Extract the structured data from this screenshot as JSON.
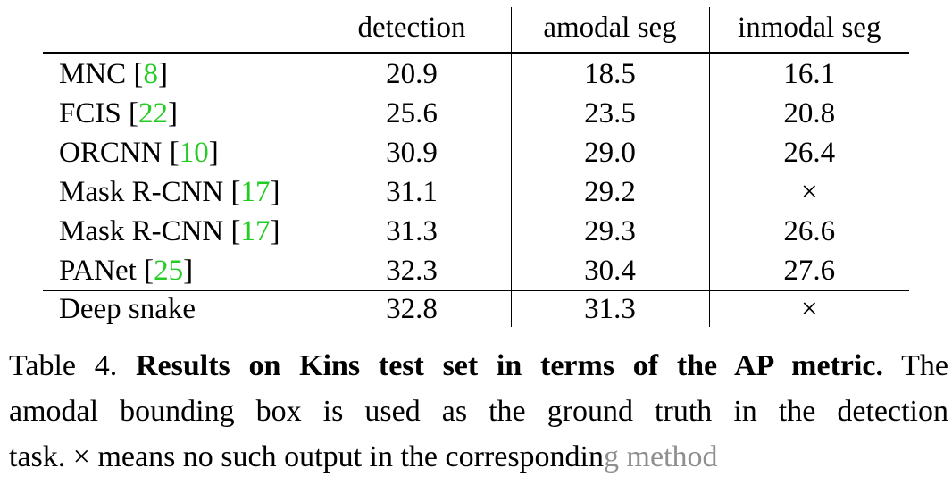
{
  "table": {
    "headers": [
      "",
      "detection",
      "amodal seg",
      "inmodal seg"
    ],
    "rows": [
      {
        "method": "MNC",
        "cite": "8",
        "detection": "20.9",
        "amodal_seg": "18.5",
        "inmodal_seg": "16.1"
      },
      {
        "method": "FCIS",
        "cite": "22",
        "detection": "25.6",
        "amodal_seg": "23.5",
        "inmodal_seg": "20.8"
      },
      {
        "method": "ORCNN",
        "cite": "10",
        "detection": "30.9",
        "amodal_seg": "29.0",
        "inmodal_seg": "26.4"
      },
      {
        "method": "Mask R-CNN",
        "cite": "17",
        "detection": "31.1",
        "amodal_seg": "29.2",
        "inmodal_seg": "×"
      },
      {
        "method": "Mask R-CNN",
        "cite": "17",
        "detection": "31.3",
        "amodal_seg": "29.3",
        "inmodal_seg": "26.6"
      },
      {
        "method": "PANet",
        "cite": "25",
        "detection": "32.3",
        "amodal_seg": "30.4",
        "inmodal_seg": "27.6"
      }
    ],
    "last_row": {
      "method": "Deep snake",
      "detection": "32.8",
      "amodal_seg": "31.3",
      "inmodal_seg": "×"
    }
  },
  "caption": {
    "label": "Table 4.",
    "title": "Results on Kins test set in terms of the AP metric.",
    "line1_tail": "The",
    "line2": "amodal bounding box is used as the ground truth in the detection",
    "line3_start": "task. × means no such output in the correspondin",
    "line3_faded": "g method"
  },
  "colors": {
    "citation": "#22cc22",
    "text": "#000000",
    "background": "#ffffff"
  }
}
